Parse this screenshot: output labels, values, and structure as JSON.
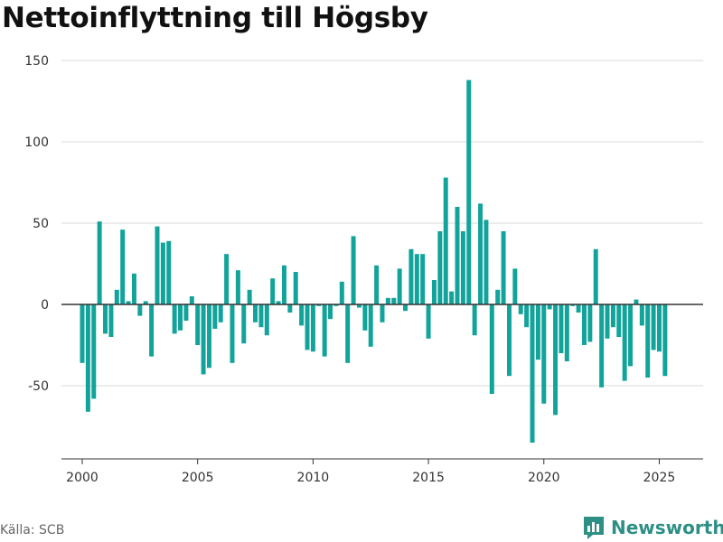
{
  "title": "Nettoinflyttning till Högsby",
  "source": "Källa: SCB",
  "brand": "Newsworthy",
  "colors": {
    "bar": "#12a39a",
    "brand": "#2e9085",
    "grid": "#d9d9d9",
    "zero": "#333333"
  },
  "chart_data": {
    "type": "bar",
    "title": "Nettoinflyttning till Högsby",
    "xlabel": "",
    "ylabel": "",
    "ylim": [
      -95,
      155
    ],
    "xlim": [
      1999.1,
      2026.9
    ],
    "yticks": [
      -50,
      0,
      50,
      100,
      150
    ],
    "xticks": [
      2000,
      2005,
      2010,
      2015,
      2020,
      2025
    ],
    "grid": true,
    "legend": "none",
    "x": [
      2000.0,
      2000.25,
      2000.5,
      2000.75,
      2001.0,
      2001.25,
      2001.5,
      2001.75,
      2002.0,
      2002.25,
      2002.5,
      2002.75,
      2003.0,
      2003.25,
      2003.5,
      2003.75,
      2004.0,
      2004.25,
      2004.5,
      2004.75,
      2005.0,
      2005.25,
      2005.5,
      2005.75,
      2006.0,
      2006.25,
      2006.5,
      2006.75,
      2007.0,
      2007.25,
      2007.5,
      2007.75,
      2008.0,
      2008.25,
      2008.5,
      2008.75,
      2009.0,
      2009.25,
      2009.5,
      2009.75,
      2010.0,
      2010.25,
      2010.5,
      2010.75,
      2011.0,
      2011.25,
      2011.5,
      2011.75,
      2012.0,
      2012.25,
      2012.5,
      2012.75,
      2013.0,
      2013.25,
      2013.5,
      2013.75,
      2014.0,
      2014.25,
      2014.5,
      2014.75,
      2015.0,
      2015.25,
      2015.5,
      2015.75,
      2016.0,
      2016.25,
      2016.5,
      2016.75,
      2017.0,
      2017.25,
      2017.5,
      2017.75,
      2018.0,
      2018.25,
      2018.5,
      2018.75,
      2019.0,
      2019.25,
      2019.5,
      2019.75,
      2020.0,
      2020.25,
      2020.5,
      2020.75,
      2021.0,
      2021.25,
      2021.5,
      2021.75,
      2022.0,
      2022.25,
      2022.5,
      2022.75,
      2023.0,
      2023.25,
      2023.5,
      2023.75,
      2024.0,
      2024.25,
      2024.5,
      2024.75,
      2025.0,
      2025.25
    ],
    "values": [
      -36,
      -66,
      -58,
      51,
      -18,
      -20,
      9,
      46,
      2,
      19,
      -7,
      2,
      -32,
      48,
      38,
      39,
      -18,
      -16,
      -10,
      5,
      -25,
      -43,
      -39,
      -15,
      -11,
      31,
      -36,
      21,
      -24,
      9,
      -11,
      -14,
      -19,
      16,
      2,
      24,
      -5,
      20,
      -13,
      -28,
      -29,
      -1,
      -32,
      -9,
      -1,
      14,
      -36,
      42,
      -2,
      -16,
      -26,
      24,
      -11,
      4,
      4,
      22,
      -4,
      34,
      31,
      31,
      -21,
      15,
      45,
      78,
      8,
      60,
      45,
      138,
      -19,
      62,
      52,
      -55,
      9,
      45,
      -44,
      22,
      -6,
      -14,
      -85,
      -34,
      -61,
      -3,
      -68,
      -30,
      -35,
      -1,
      -5,
      -25,
      -23,
      34,
      -51,
      -21,
      -14,
      -20,
      -47,
      -38,
      3,
      -13,
      -45,
      -28,
      -29,
      -44
    ]
  }
}
